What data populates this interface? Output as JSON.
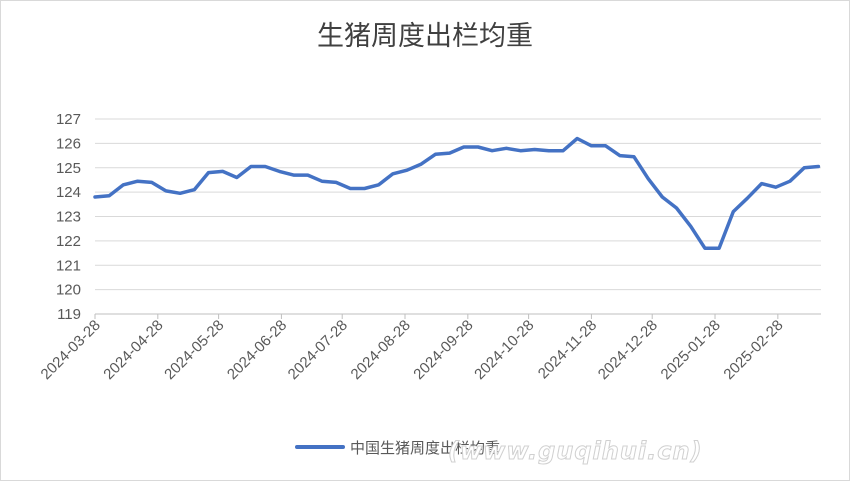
{
  "chart_data": {
    "type": "line",
    "title": "生猪周度出栏均重",
    "ylim": [
      119,
      127
    ],
    "yticks": [
      119,
      120,
      121,
      122,
      123,
      124,
      125,
      126,
      127
    ],
    "xticks": [
      "2024-03-28",
      "2024-04-28",
      "2024-05-28",
      "2024-06-28",
      "2024-07-28",
      "2024-08-28",
      "2024-09-28",
      "2024-10-28",
      "2024-11-28",
      "2024-12-28",
      "2025-01-28",
      "2025-02-28"
    ],
    "grid": true,
    "legend": "bottom",
    "series": [
      {
        "name": "中国生猪周度出栏均重",
        "color": "#4472C4",
        "x": [
          "2024-03-28",
          "2024-04-04",
          "2024-04-11",
          "2024-04-18",
          "2024-04-25",
          "2024-05-02",
          "2024-05-09",
          "2024-05-16",
          "2024-05-23",
          "2024-05-30",
          "2024-06-06",
          "2024-06-13",
          "2024-06-20",
          "2024-06-27",
          "2024-07-04",
          "2024-07-11",
          "2024-07-18",
          "2024-07-25",
          "2024-08-01",
          "2024-08-08",
          "2024-08-15",
          "2024-08-22",
          "2024-08-29",
          "2024-09-05",
          "2024-09-12",
          "2024-09-19",
          "2024-09-26",
          "2024-10-03",
          "2024-10-10",
          "2024-10-17",
          "2024-10-24",
          "2024-10-31",
          "2024-11-07",
          "2024-11-14",
          "2024-11-21",
          "2024-11-28",
          "2024-12-05",
          "2024-12-12",
          "2024-12-19",
          "2024-12-26",
          "2025-01-02",
          "2025-01-09",
          "2025-01-16",
          "2025-01-23",
          "2025-01-30",
          "2025-02-06",
          "2025-02-13",
          "2025-02-20",
          "2025-02-27",
          "2025-03-06",
          "2025-03-13",
          "2025-03-20"
        ],
        "values": [
          123.8,
          123.85,
          124.3,
          124.45,
          124.4,
          124.05,
          123.95,
          124.1,
          124.8,
          124.85,
          124.6,
          125.05,
          125.05,
          124.85,
          124.7,
          124.7,
          124.45,
          124.4,
          124.15,
          124.15,
          124.3,
          124.75,
          124.9,
          125.15,
          125.55,
          125.6,
          125.85,
          125.85,
          125.7,
          125.8,
          125.7,
          125.75,
          125.7,
          125.7,
          126.2,
          125.9,
          125.9,
          125.5,
          125.45,
          124.55,
          123.8,
          123.35,
          122.6,
          121.7,
          121.7,
          123.2,
          123.75,
          124.35,
          124.2,
          124.45,
          125.0,
          125.05
        ]
      }
    ]
  },
  "watermark": "(www.guqihui.cn)"
}
